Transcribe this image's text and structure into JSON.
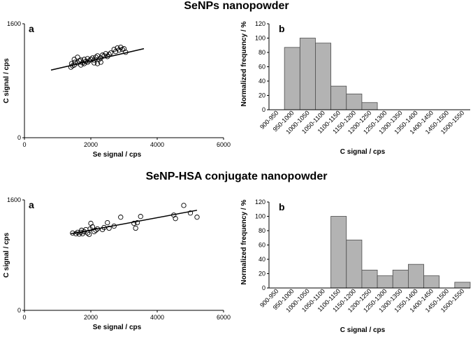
{
  "sections": [
    {
      "title": "SeNPs nanopowder"
    },
    {
      "title": "SeNP-HSA conjugate nanopowder"
    }
  ],
  "chart_data": [
    {
      "type": "scatter",
      "panel_label": "a",
      "xlabel": "Se signal / cps",
      "ylabel": "C signal / cps",
      "xlim": [
        0,
        6000
      ],
      "ylim": [
        0,
        1600
      ],
      "xticks": [
        0,
        2000,
        4000,
        6000
      ],
      "yticks": [
        0,
        1600
      ],
      "points": [
        [
          1400,
          990
        ],
        [
          1450,
          1010
        ],
        [
          1500,
          1020
        ],
        [
          1420,
          1040
        ],
        [
          1520,
          1060
        ],
        [
          1600,
          1050
        ],
        [
          1650,
          1080
        ],
        [
          1700,
          1020
        ],
        [
          1750,
          1050
        ],
        [
          1800,
          1100
        ],
        [
          1850,
          1070
        ],
        [
          1900,
          1110
        ],
        [
          1950,
          1080
        ],
        [
          2000,
          1100
        ],
        [
          2050,
          1120
        ],
        [
          2100,
          1090
        ],
        [
          2150,
          1130
        ],
        [
          2200,
          1150
        ],
        [
          2250,
          1100
        ],
        [
          2300,
          1120
        ],
        [
          2350,
          1160
        ],
        [
          2400,
          1150
        ],
        [
          2450,
          1180
        ],
        [
          2500,
          1140
        ],
        [
          2550,
          1170
        ],
        [
          2600,
          1190
        ],
        [
          2700,
          1240
        ],
        [
          2750,
          1210
        ],
        [
          2800,
          1260
        ],
        [
          2850,
          1230
        ],
        [
          2900,
          1270
        ],
        [
          2950,
          1240
        ],
        [
          3000,
          1250
        ],
        [
          3050,
          1200
        ],
        [
          1500,
          1100
        ],
        [
          1600,
          1130
        ],
        [
          1700,
          1090
        ],
        [
          1800,
          1040
        ],
        [
          1900,
          1060
        ],
        [
          2100,
          1050
        ],
        [
          2200,
          1040
        ],
        [
          2300,
          1060
        ]
      ],
      "trendline": [
        [
          800,
          950
        ],
        [
          3600,
          1250
        ]
      ]
    },
    {
      "type": "bar",
      "panel_label": "b",
      "xlabel": "C signal / cps",
      "ylabel": "Normalized frequency / %",
      "ylim": [
        0,
        120
      ],
      "yticks": [
        0,
        20,
        40,
        60,
        80,
        100,
        120
      ],
      "categories": [
        "900-950",
        "950-1000",
        "1000-1050",
        "1050-1100",
        "1100-1150",
        "1150-1200",
        "1200-1250",
        "1250-1300",
        "1300-1350",
        "1350-1400",
        "1400-1450",
        "1450-1500",
        "1500-1550"
      ],
      "values": [
        0,
        87,
        100,
        93,
        33,
        22,
        10,
        0,
        0,
        0,
        0,
        0,
        0
      ]
    },
    {
      "type": "scatter",
      "panel_label": "a",
      "xlabel": "Se signal / cps",
      "ylabel": "C signal / cps",
      "xlim": [
        0,
        6000
      ],
      "ylim": [
        0,
        1600
      ],
      "xticks": [
        0,
        2000,
        4000,
        6000
      ],
      "yticks": [
        0,
        1600
      ],
      "points": [
        [
          1450,
          1120
        ],
        [
          1550,
          1110
        ],
        [
          1600,
          1130
        ],
        [
          1650,
          1105
        ],
        [
          1700,
          1130
        ],
        [
          1720,
          1160
        ],
        [
          1750,
          1110
        ],
        [
          1800,
          1140
        ],
        [
          1850,
          1170
        ],
        [
          1900,
          1120
        ],
        [
          1950,
          1100
        ],
        [
          1980,
          1180
        ],
        [
          2000,
          1260
        ],
        [
          2050,
          1210
        ],
        [
          2100,
          1140
        ],
        [
          2150,
          1160
        ],
        [
          2200,
          1180
        ],
        [
          2350,
          1170
        ],
        [
          2400,
          1200
        ],
        [
          2500,
          1270
        ],
        [
          2550,
          1190
        ],
        [
          2700,
          1220
        ],
        [
          2900,
          1350
        ],
        [
          3300,
          1260
        ],
        [
          3350,
          1190
        ],
        [
          3400,
          1270
        ],
        [
          3500,
          1360
        ],
        [
          4500,
          1380
        ],
        [
          4550,
          1330
        ],
        [
          4800,
          1520
        ],
        [
          5000,
          1410
        ],
        [
          5200,
          1350
        ]
      ],
      "trendline": [
        [
          1400,
          1110
        ],
        [
          5200,
          1450
        ]
      ]
    },
    {
      "type": "bar",
      "panel_label": "b",
      "xlabel": "C signal / cps",
      "ylabel": "Normalized frequency / %",
      "ylim": [
        0,
        120
      ],
      "yticks": [
        0,
        20,
        40,
        60,
        80,
        100,
        120
      ],
      "categories": [
        "900-950",
        "950-1000",
        "1000-1050",
        "1050-1100",
        "1100-1150",
        "1150-1200",
        "1200-1250",
        "1250-1300",
        "1300-1350",
        "1350-1400",
        "1400-1450",
        "1450-1500",
        "1500-1550"
      ],
      "values": [
        0,
        0,
        0,
        0,
        100,
        67,
        25,
        17,
        25,
        33,
        17,
        0,
        8
      ]
    }
  ]
}
